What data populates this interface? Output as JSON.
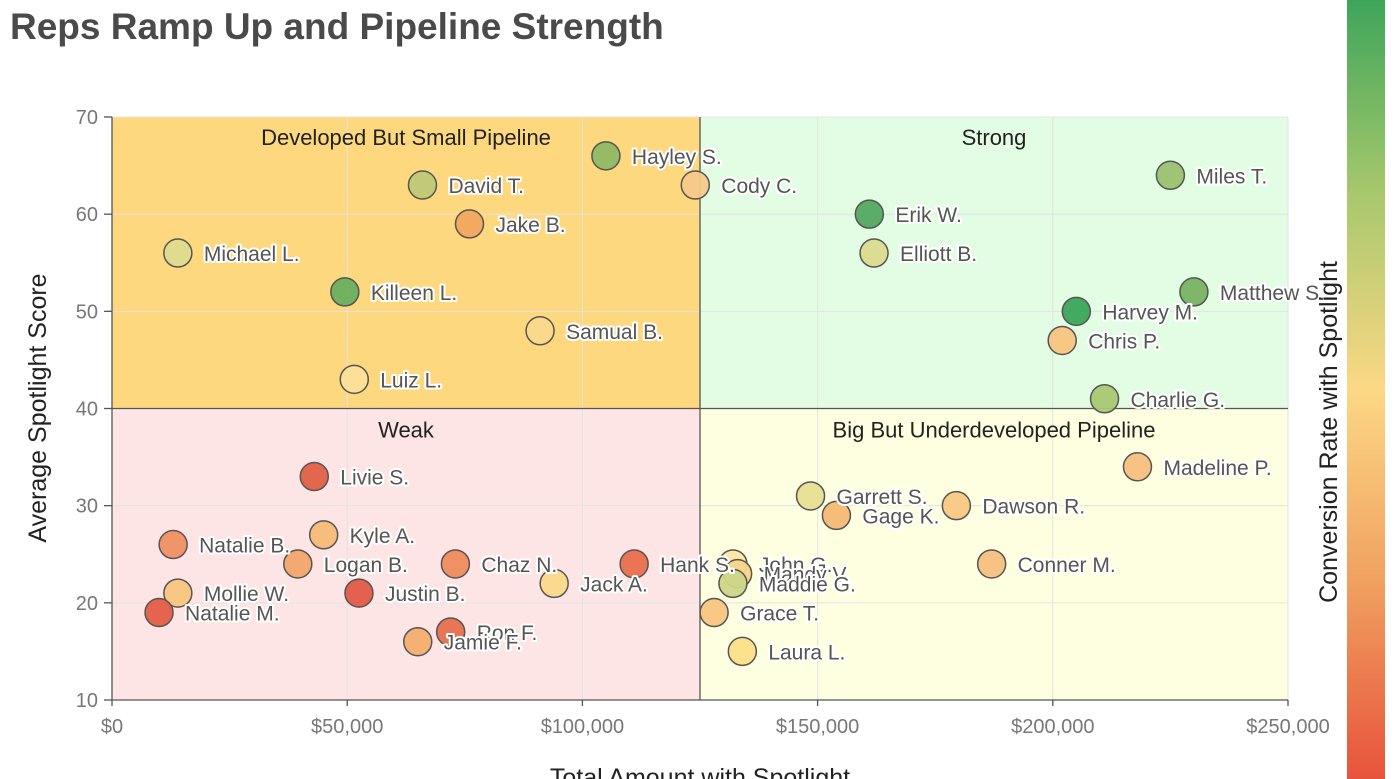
{
  "chart_data": {
    "type": "scatter",
    "title": "Reps Ramp Up and Pipeline Strength",
    "xlabel": "Total Amount with Spotlight",
    "ylabel": "Average Spotlight Score",
    "colorbar_label": "Conversion Rate with Spotlight",
    "xlim": [
      0,
      250000
    ],
    "ylim": [
      10,
      70
    ],
    "x_ticks": [
      0,
      50000,
      100000,
      150000,
      200000,
      250000
    ],
    "x_tick_labels": [
      "$0",
      "$50,000",
      "$100,000",
      "$150,000",
      "$200,000",
      "$250,000"
    ],
    "y_ticks": [
      10,
      20,
      30,
      40,
      50,
      60,
      70
    ],
    "y_tick_labels": [
      "10",
      "20",
      "30",
      "40",
      "50",
      "60",
      "70"
    ],
    "grid": true,
    "x_divider": 125000,
    "y_divider": 40,
    "colorscale": [
      "#e8533b",
      "#f0a060",
      "#fcd884",
      "#a8c86c",
      "#3ea55a"
    ],
    "quadrants": [
      {
        "label": "Developed But Small Pipeline",
        "x_range": [
          0,
          125000
        ],
        "y_range": [
          40,
          70
        ],
        "color": "#fdd87e"
      },
      {
        "label": "Strong",
        "x_range": [
          125000,
          250000
        ],
        "y_range": [
          40,
          70
        ],
        "color": "#e3fce4"
      },
      {
        "label": "Weak",
        "x_range": [
          0,
          125000
        ],
        "y_range": [
          10,
          40
        ],
        "color": "#fee5e5"
      },
      {
        "label": "Big But Underdeveloped Pipeline",
        "x_range": [
          125000,
          250000
        ],
        "y_range": [
          10,
          40
        ],
        "color": "#fefee1"
      }
    ],
    "points": [
      {
        "name": "Hayley S.",
        "x": 105000,
        "y": 66,
        "color": "#8fb965"
      },
      {
        "name": "David T.",
        "x": 66000,
        "y": 63,
        "color": "#bfc877"
      },
      {
        "name": "Cody C.",
        "x": 124000,
        "y": 63,
        "color": "#f7c98a"
      },
      {
        "name": "Jake B.",
        "x": 76000,
        "y": 59,
        "color": "#f2a75f"
      },
      {
        "name": "Michael L.",
        "x": 14000,
        "y": 56,
        "color": "#dedb8e"
      },
      {
        "name": "Killeen L.",
        "x": 49500,
        "y": 52,
        "color": "#6aaf5f"
      },
      {
        "name": "Samual B.",
        "x": 91000,
        "y": 48,
        "color": "#fbd98b"
      },
      {
        "name": "Luiz L.",
        "x": 51500,
        "y": 43,
        "color": "#fde09a"
      },
      {
        "name": "Miles T.",
        "x": 225000,
        "y": 64,
        "color": "#9cc16f"
      },
      {
        "name": "Erik W.",
        "x": 161000,
        "y": 60,
        "color": "#52a860"
      },
      {
        "name": "Elliott B.",
        "x": 162000,
        "y": 56,
        "color": "#dadb8d"
      },
      {
        "name": "Matthew S.",
        "x": 230000,
        "y": 52,
        "color": "#78b263"
      },
      {
        "name": "Harvey M.",
        "x": 205000,
        "y": 50,
        "color": "#3aa55a"
      },
      {
        "name": "Chris P.",
        "x": 202000,
        "y": 47,
        "color": "#f7c480"
      },
      {
        "name": "Charlie G.",
        "x": 211000,
        "y": 41,
        "color": "#a9c872"
      },
      {
        "name": "Livie S.",
        "x": 43000,
        "y": 33,
        "color": "#e06045"
      },
      {
        "name": "Natalie B.",
        "x": 13000,
        "y": 26,
        "color": "#ef8f63"
      },
      {
        "name": "Kyle A.",
        "x": 45000,
        "y": 27,
        "color": "#f6bb77"
      },
      {
        "name": "Logan B.",
        "x": 39500,
        "y": 24,
        "color": "#f3a46b"
      },
      {
        "name": "Chaz N.",
        "x": 73000,
        "y": 24,
        "color": "#ee8b5e"
      },
      {
        "name": "Hank S.",
        "x": 111000,
        "y": 24,
        "color": "#e96e4c"
      },
      {
        "name": "Mollie W.",
        "x": 14000,
        "y": 21,
        "color": "#f9c57e"
      },
      {
        "name": "Justin B.",
        "x": 52500,
        "y": 21,
        "color": "#e25a46"
      },
      {
        "name": "Jack A.",
        "x": 94000,
        "y": 22,
        "color": "#fbd98b"
      },
      {
        "name": "Natalie M.",
        "x": 10000,
        "y": 19,
        "color": "#e45d45"
      },
      {
        "name": "Ron F.",
        "x": 72000,
        "y": 17,
        "color": "#e66f4e"
      },
      {
        "name": "Jamie F.",
        "x": 65000,
        "y": 16,
        "color": "#f4ae6e"
      },
      {
        "name": "John G.",
        "x": 132000,
        "y": 24,
        "color": "#fde7a3"
      },
      {
        "name": "Mandy V.",
        "x": 133000,
        "y": 23,
        "color": "#f9d489"
      },
      {
        "name": "Maddie G.",
        "x": 132000,
        "y": 22,
        "color": "#cfd587"
      },
      {
        "name": "Grace T.",
        "x": 128000,
        "y": 19,
        "color": "#f9c57e"
      },
      {
        "name": "Laura L.",
        "x": 134000,
        "y": 15,
        "color": "#fde089"
      },
      {
        "name": "Garrett S.",
        "x": 148500,
        "y": 31,
        "color": "#e8df92"
      },
      {
        "name": "Gage K.",
        "x": 154000,
        "y": 29,
        "color": "#f5b873"
      },
      {
        "name": "Dawson R.",
        "x": 179500,
        "y": 30,
        "color": "#f8c882"
      },
      {
        "name": "Madeline P.",
        "x": 218000,
        "y": 34,
        "color": "#f7c07e"
      },
      {
        "name": "Conner M.",
        "x": 187000,
        "y": 24,
        "color": "#f7c07e"
      }
    ]
  }
}
